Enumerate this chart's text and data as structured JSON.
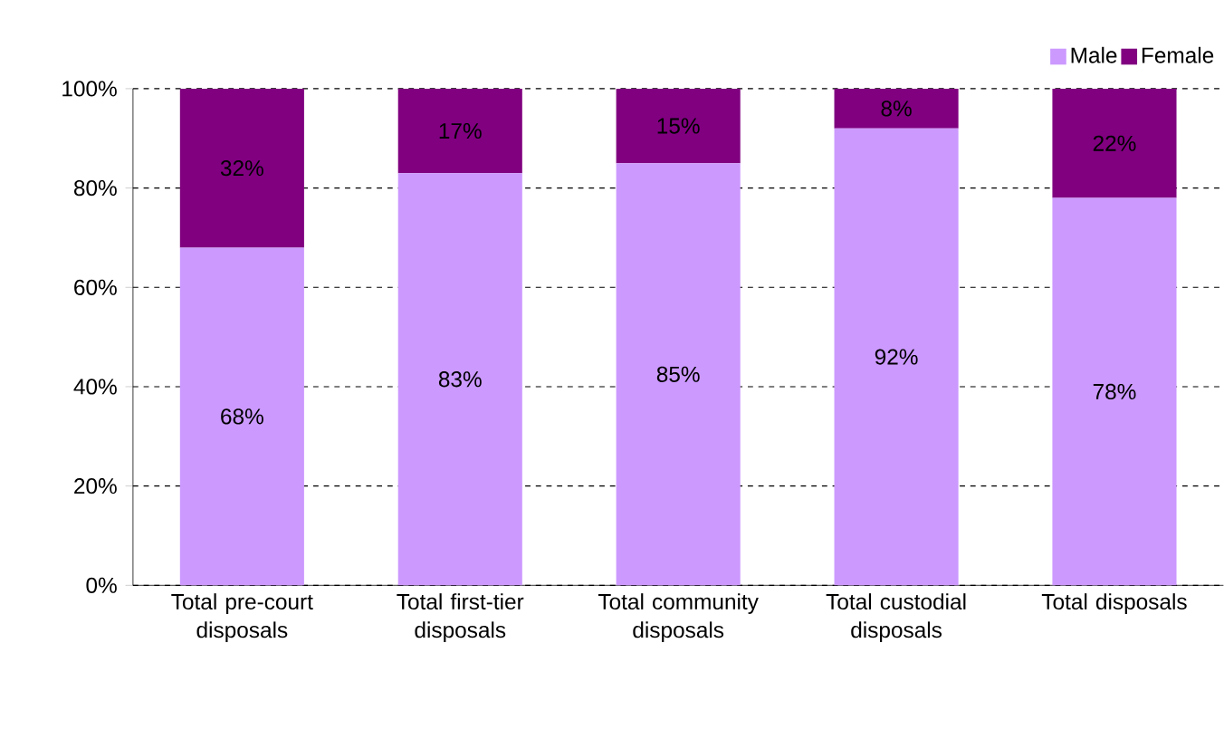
{
  "chart_data": {
    "type": "bar",
    "stacked": true,
    "categories": [
      "Total pre-court disposals",
      "Total first-tier disposals",
      "Total community disposals",
      "Total custodial disposals",
      "Total disposals"
    ],
    "series": [
      {
        "name": "Male",
        "color": "#cc99ff",
        "values": [
          68,
          83,
          85,
          92,
          78
        ],
        "value_labels": [
          "68%",
          "83%",
          "85%",
          "92%",
          "78%"
        ]
      },
      {
        "name": "Female",
        "color": "#800080",
        "values": [
          32,
          17,
          15,
          8,
          22
        ],
        "value_labels": [
          "32%",
          "17%",
          "15%",
          "8%",
          "22%"
        ]
      }
    ],
    "ylim": [
      0,
      100
    ],
    "yticks": [
      {
        "value": 0,
        "label": "0%"
      },
      {
        "value": 20,
        "label": "20%"
      },
      {
        "value": 40,
        "label": "40%"
      },
      {
        "value": 60,
        "label": "60%"
      },
      {
        "value": 80,
        "label": "80%"
      },
      {
        "value": 100,
        "label": "100%"
      }
    ],
    "grid": "y",
    "legend": "top right"
  }
}
